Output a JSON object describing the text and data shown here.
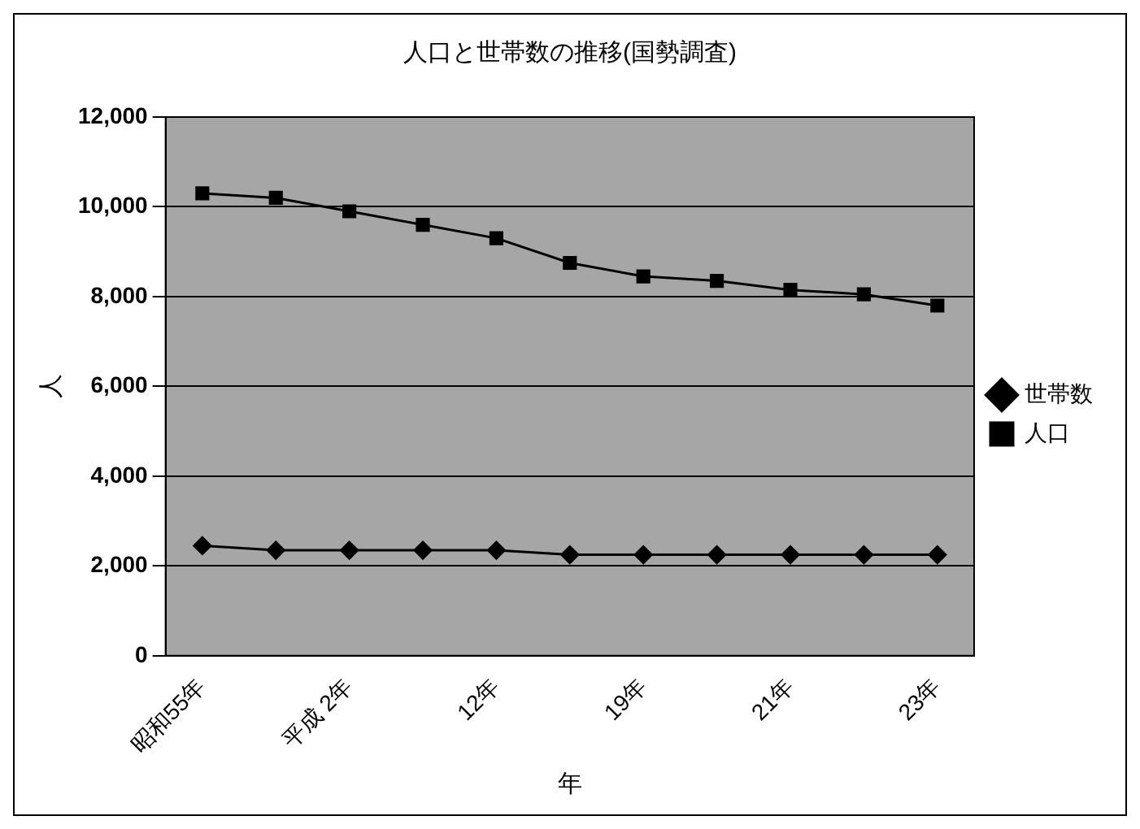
{
  "chart_data": {
    "type": "line",
    "title": "人口と世帯数の推移(国勢調査)",
    "xlabel": "年",
    "ylabel": "人",
    "categories": [
      "昭和55年",
      null,
      "平成 2年",
      null,
      "12年",
      null,
      "19年",
      null,
      "21年",
      null,
      "23年"
    ],
    "series": [
      {
        "name": "世帯数",
        "color": "#000000",
        "marker": "diamond",
        "values": [
          2450,
          2350,
          2350,
          2350,
          2350,
          2250,
          2250,
          2250,
          2250,
          2250,
          2250
        ]
      },
      {
        "name": "人口",
        "color": "#000000",
        "marker": "square",
        "values": [
          10300,
          10200,
          9900,
          9600,
          9300,
          8750,
          8450,
          8350,
          8150,
          8050,
          7800
        ]
      }
    ],
    "ylim": [
      0,
      12000
    ],
    "yticks": [
      0,
      {
        "value": 2000,
        "label": "2,000"
      },
      {
        "value": 4000,
        "label": "4,000"
      },
      {
        "value": 6000,
        "label": "6,000"
      },
      {
        "value": 8000,
        "label": "8,000"
      },
      {
        "value": 10000,
        "label": "10,000"
      },
      {
        "value": 12000,
        "label": "12,000"
      }
    ],
    "grid": "y",
    "legend": "right",
    "line_style": "solid"
  }
}
